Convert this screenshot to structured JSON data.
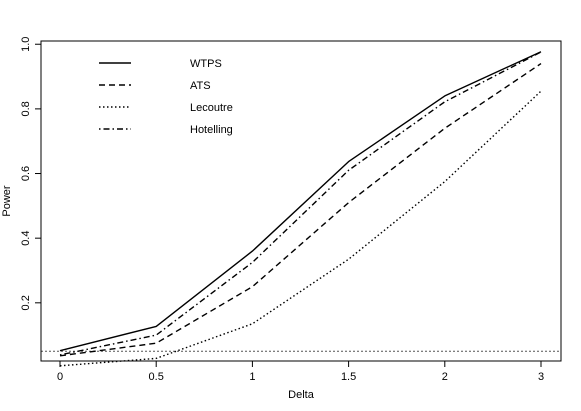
{
  "chart_data": {
    "type": "line",
    "xlabel": "Delta",
    "ylabel": "Power",
    "x": [
      0,
      0.5,
      1,
      1.5,
      2,
      3
    ],
    "x_tick_labels": [
      "0",
      "0.5",
      "1",
      "1.5",
      "2",
      "3"
    ],
    "y_ticks": [
      0.2,
      0.4,
      0.6,
      0.8,
      1.0
    ],
    "y_tick_labels": [
      "0.2",
      "0.4",
      "0.6",
      "0.8",
      "1.0"
    ],
    "xlim": [
      -0.12,
      3.12
    ],
    "ylim": [
      0.02,
      1.01
    ],
    "x_axis_style": "categorical, equally spaced",
    "grid": false,
    "legend_position": "top-left",
    "reference_line": {
      "y": 0.05,
      "style": "dotted",
      "color": "#555555"
    },
    "series": [
      {
        "name": "WTPS",
        "dash": "solid",
        "values": [
          0.052,
          0.127,
          0.36,
          0.637,
          0.84,
          0.977
        ]
      },
      {
        "name": "ATS",
        "dash": "dashed",
        "values": [
          0.036,
          0.075,
          0.25,
          0.51,
          0.74,
          0.94
        ]
      },
      {
        "name": "Lecoutre",
        "dash": "dotted",
        "values": [
          0.005,
          0.028,
          0.135,
          0.335,
          0.575,
          0.855
        ]
      },
      {
        "name": "Hotelling",
        "dash": "dotdash",
        "values": [
          0.039,
          0.1,
          0.325,
          0.61,
          0.822,
          0.976
        ]
      }
    ]
  }
}
